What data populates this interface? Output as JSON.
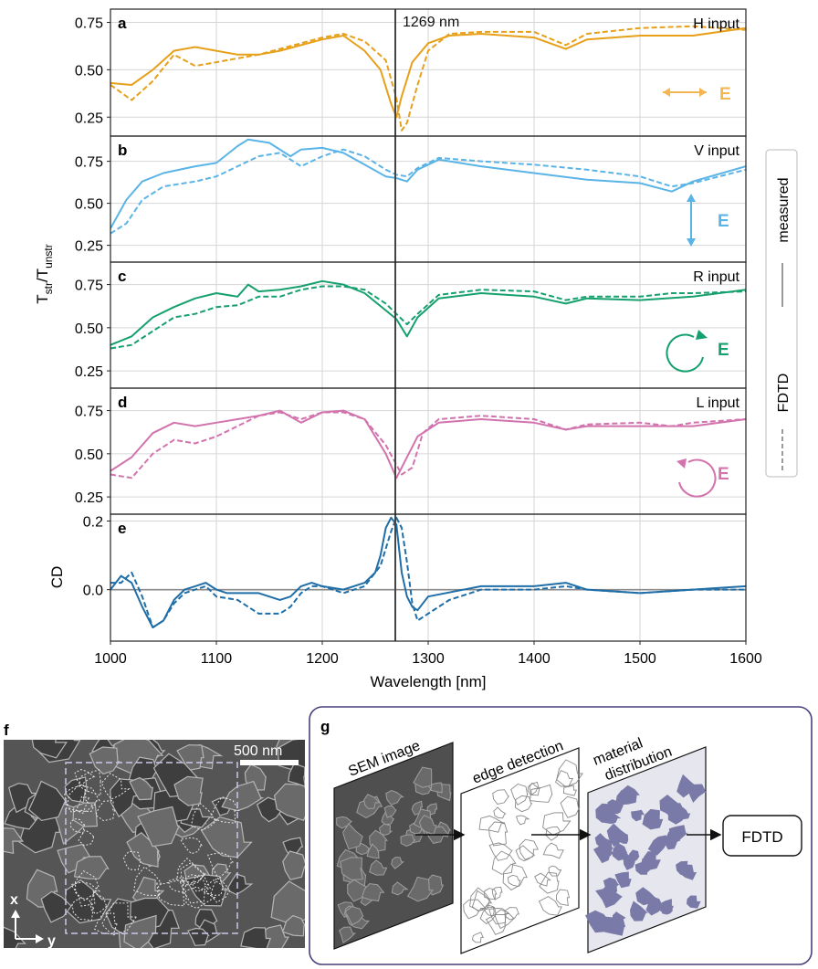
{
  "colors": {
    "H": "#e6a01a",
    "V": "#5ab4e6",
    "R": "#15a06e",
    "L": "#d273ad",
    "CD": "#1f6ea8",
    "marker": "#444444",
    "legend_line": "#999999",
    "material": "#7a7aa8",
    "panel_g_border": "#4a3f7a"
  },
  "shared_axis": {
    "xlabel": "Wavelength [nm]",
    "xlim": [
      1000,
      1600
    ],
    "xticks": [
      "1000",
      "1100",
      "1200",
      "1300",
      "1400",
      "1500",
      "1600"
    ],
    "xtick_values": [
      1000,
      1100,
      1200,
      1300,
      1400,
      1500,
      1600
    ],
    "ylabel_main": "T",
    "ylabel_sub1": "str",
    "ylabel_mid": "/T",
    "ylabel_sub2": "unstr",
    "marker_wavelength": 1269,
    "marker_label": "1269 nm"
  },
  "legend": {
    "measured": "measured",
    "fdtd": "FDTD"
  },
  "chart_data": [
    {
      "type": "line",
      "panel": "a",
      "title": "H input",
      "color_key": "H",
      "ylim": [
        0.15,
        0.82
      ],
      "yticks": [
        0.25,
        0.5,
        0.75
      ],
      "ytick_labels": [
        "0.25",
        "0.50",
        "0.75"
      ],
      "polarization_label": "E",
      "series": [
        {
          "name": "measured",
          "x": [
            1000,
            1020,
            1040,
            1060,
            1080,
            1100,
            1120,
            1140,
            1160,
            1180,
            1200,
            1220,
            1240,
            1255,
            1265,
            1270,
            1275,
            1285,
            1300,
            1320,
            1350,
            1400,
            1430,
            1450,
            1500,
            1550,
            1600
          ],
          "values": [
            0.43,
            0.42,
            0.5,
            0.6,
            0.62,
            0.6,
            0.58,
            0.58,
            0.6,
            0.63,
            0.66,
            0.68,
            0.6,
            0.5,
            0.32,
            0.25,
            0.36,
            0.54,
            0.64,
            0.68,
            0.69,
            0.67,
            0.61,
            0.66,
            0.68,
            0.68,
            0.72
          ]
        },
        {
          "name": "FDTD",
          "x": [
            1000,
            1020,
            1040,
            1060,
            1080,
            1100,
            1120,
            1140,
            1160,
            1180,
            1200,
            1220,
            1240,
            1260,
            1270,
            1275,
            1280,
            1290,
            1300,
            1320,
            1350,
            1400,
            1430,
            1450,
            1500,
            1550,
            1600
          ],
          "values": [
            0.42,
            0.34,
            0.44,
            0.58,
            0.52,
            0.54,
            0.56,
            0.58,
            0.61,
            0.64,
            0.67,
            0.69,
            0.65,
            0.55,
            0.35,
            0.18,
            0.22,
            0.42,
            0.6,
            0.69,
            0.7,
            0.7,
            0.63,
            0.69,
            0.72,
            0.73,
            0.71
          ]
        }
      ]
    },
    {
      "type": "line",
      "panel": "b",
      "title": "V input",
      "color_key": "V",
      "ylim": [
        0.15,
        0.9
      ],
      "yticks": [
        0.25,
        0.5,
        0.75
      ],
      "ytick_labels": [
        "0.25",
        "0.50",
        "0.75"
      ],
      "polarization_label": "E",
      "series": [
        {
          "name": "measured",
          "x": [
            1000,
            1015,
            1030,
            1050,
            1080,
            1100,
            1120,
            1130,
            1150,
            1170,
            1180,
            1200,
            1220,
            1240,
            1260,
            1270,
            1280,
            1290,
            1310,
            1350,
            1400,
            1450,
            1500,
            1530,
            1550,
            1600
          ],
          "values": [
            0.35,
            0.52,
            0.63,
            0.68,
            0.72,
            0.74,
            0.84,
            0.88,
            0.86,
            0.78,
            0.82,
            0.83,
            0.8,
            0.73,
            0.66,
            0.65,
            0.63,
            0.7,
            0.76,
            0.72,
            0.68,
            0.64,
            0.62,
            0.57,
            0.63,
            0.72
          ]
        },
        {
          "name": "FDTD",
          "x": [
            1000,
            1015,
            1030,
            1050,
            1080,
            1100,
            1120,
            1140,
            1160,
            1180,
            1200,
            1220,
            1240,
            1260,
            1270,
            1280,
            1290,
            1310,
            1350,
            1400,
            1450,
            1500,
            1530,
            1550,
            1600
          ],
          "values": [
            0.32,
            0.38,
            0.52,
            0.6,
            0.63,
            0.66,
            0.72,
            0.78,
            0.8,
            0.72,
            0.78,
            0.82,
            0.78,
            0.7,
            0.67,
            0.66,
            0.71,
            0.77,
            0.75,
            0.73,
            0.7,
            0.66,
            0.6,
            0.62,
            0.7
          ]
        }
      ]
    },
    {
      "type": "line",
      "panel": "c",
      "title": "R input",
      "color_key": "R",
      "ylim": [
        0.15,
        0.88
      ],
      "yticks": [
        0.25,
        0.5,
        0.75
      ],
      "ytick_labels": [
        "0.25",
        "0.50",
        "0.75"
      ],
      "polarization_label": "E",
      "series": [
        {
          "name": "measured",
          "x": [
            1000,
            1020,
            1040,
            1060,
            1080,
            1100,
            1120,
            1130,
            1140,
            1160,
            1180,
            1200,
            1220,
            1240,
            1260,
            1270,
            1280,
            1290,
            1310,
            1350,
            1400,
            1430,
            1450,
            1500,
            1550,
            1600
          ],
          "values": [
            0.4,
            0.45,
            0.56,
            0.62,
            0.67,
            0.7,
            0.68,
            0.75,
            0.71,
            0.72,
            0.74,
            0.77,
            0.75,
            0.7,
            0.6,
            0.55,
            0.45,
            0.56,
            0.67,
            0.7,
            0.68,
            0.64,
            0.67,
            0.66,
            0.68,
            0.72
          ]
        },
        {
          "name": "FDTD",
          "x": [
            1000,
            1020,
            1040,
            1060,
            1080,
            1100,
            1120,
            1140,
            1160,
            1180,
            1200,
            1220,
            1240,
            1260,
            1270,
            1280,
            1290,
            1310,
            1350,
            1400,
            1430,
            1450,
            1500,
            1530,
            1550,
            1600
          ],
          "values": [
            0.38,
            0.4,
            0.48,
            0.56,
            0.58,
            0.62,
            0.63,
            0.68,
            0.68,
            0.72,
            0.74,
            0.74,
            0.72,
            0.64,
            0.58,
            0.52,
            0.58,
            0.69,
            0.72,
            0.71,
            0.66,
            0.68,
            0.68,
            0.7,
            0.7,
            0.71
          ]
        }
      ]
    },
    {
      "type": "line",
      "panel": "d",
      "title": "L input",
      "color_key": "L",
      "ylim": [
        0.15,
        0.88
      ],
      "yticks": [
        0.25,
        0.5,
        0.75
      ],
      "ytick_labels": [
        "0.25",
        "0.50",
        "0.75"
      ],
      "polarization_label": "E",
      "series": [
        {
          "name": "measured",
          "x": [
            1000,
            1020,
            1040,
            1060,
            1080,
            1100,
            1120,
            1140,
            1160,
            1180,
            1200,
            1220,
            1240,
            1260,
            1270,
            1280,
            1290,
            1310,
            1350,
            1400,
            1430,
            1450,
            1500,
            1550,
            1600
          ],
          "values": [
            0.4,
            0.48,
            0.62,
            0.68,
            0.66,
            0.68,
            0.7,
            0.72,
            0.75,
            0.68,
            0.74,
            0.75,
            0.7,
            0.5,
            0.36,
            0.48,
            0.6,
            0.68,
            0.7,
            0.68,
            0.64,
            0.66,
            0.66,
            0.66,
            0.7
          ]
        },
        {
          "name": "FDTD",
          "x": [
            1000,
            1020,
            1040,
            1060,
            1080,
            1100,
            1120,
            1140,
            1160,
            1180,
            1200,
            1220,
            1240,
            1260,
            1275,
            1285,
            1295,
            1310,
            1350,
            1400,
            1430,
            1450,
            1500,
            1530,
            1550,
            1600
          ],
          "values": [
            0.38,
            0.36,
            0.5,
            0.58,
            0.56,
            0.6,
            0.66,
            0.72,
            0.74,
            0.7,
            0.74,
            0.74,
            0.7,
            0.55,
            0.38,
            0.42,
            0.62,
            0.7,
            0.72,
            0.7,
            0.64,
            0.67,
            0.68,
            0.66,
            0.68,
            0.7
          ]
        }
      ]
    },
    {
      "type": "line",
      "panel": "e",
      "title": "",
      "ylabel": "CD",
      "color_key": "CD",
      "ylim": [
        -0.15,
        0.22
      ],
      "yticks": [
        0.0,
        0.2
      ],
      "ytick_labels": [
        "0.0",
        "0.2"
      ],
      "series": [
        {
          "name": "measured",
          "x": [
            1000,
            1010,
            1020,
            1030,
            1040,
            1050,
            1060,
            1070,
            1080,
            1090,
            1100,
            1110,
            1120,
            1140,
            1160,
            1170,
            1180,
            1190,
            1200,
            1220,
            1240,
            1250,
            1255,
            1260,
            1265,
            1270,
            1275,
            1280,
            1285,
            1290,
            1300,
            1350,
            1400,
            1430,
            1450,
            1500,
            1550,
            1600
          ],
          "values": [
            0.0,
            0.04,
            0.02,
            -0.05,
            -0.11,
            -0.09,
            -0.03,
            0.0,
            0.01,
            0.02,
            0.0,
            -0.01,
            -0.01,
            -0.01,
            -0.03,
            -0.02,
            0.01,
            0.02,
            0.01,
            0.0,
            0.02,
            0.05,
            0.1,
            0.18,
            0.21,
            0.19,
            0.05,
            -0.02,
            -0.05,
            -0.06,
            -0.02,
            0.01,
            0.01,
            0.02,
            0.0,
            -0.01,
            0.0,
            0.01
          ]
        },
        {
          "name": "FDTD",
          "x": [
            1000,
            1010,
            1020,
            1030,
            1040,
            1050,
            1060,
            1070,
            1080,
            1090,
            1100,
            1120,
            1140,
            1160,
            1170,
            1180,
            1190,
            1200,
            1220,
            1240,
            1255,
            1265,
            1270,
            1275,
            1280,
            1285,
            1290,
            1300,
            1320,
            1350,
            1400,
            1430,
            1450,
            1500,
            1550,
            1600
          ],
          "values": [
            0.02,
            0.02,
            0.05,
            -0.02,
            -0.11,
            -0.09,
            -0.04,
            -0.01,
            0.0,
            0.01,
            -0.02,
            -0.03,
            -0.07,
            -0.07,
            -0.05,
            -0.01,
            0.01,
            0.01,
            -0.01,
            0.01,
            0.07,
            0.17,
            0.21,
            0.18,
            0.08,
            -0.04,
            -0.09,
            -0.07,
            -0.03,
            0.0,
            0.0,
            0.01,
            0.0,
            -0.01,
            0.0,
            0.0
          ]
        }
      ]
    }
  ],
  "panel_f": {
    "letter": "f",
    "scalebar": "500 nm",
    "axis_x": "x",
    "axis_y": "y"
  },
  "panel_g": {
    "letter": "g",
    "sem_label": "SEM image",
    "edge_label": "edge detection",
    "material_label_1": "material",
    "material_label_2": "distribution",
    "fdtd_box": "FDTD"
  }
}
